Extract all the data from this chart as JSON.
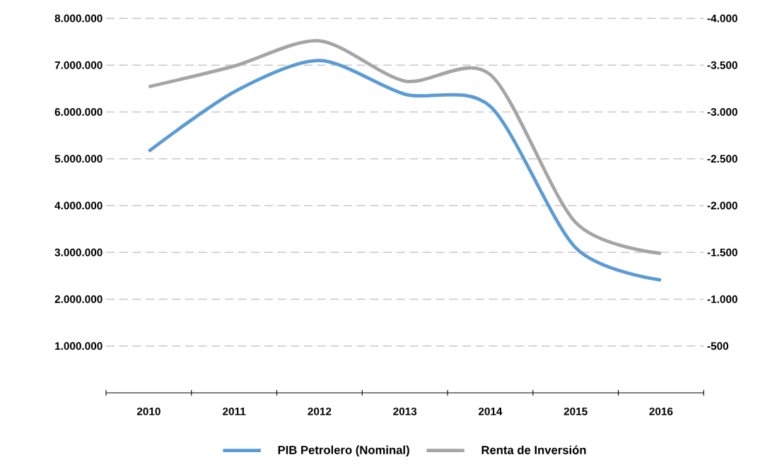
{
  "chart_data": {
    "type": "line",
    "categories": [
      "2010",
      "2011",
      "2012",
      "2013",
      "2014",
      "2015",
      "2016"
    ],
    "series": [
      {
        "name": "PIB Petrolero (Nominal)",
        "color": "#5b9bd5",
        "values": [
          5160000,
          6430000,
          7100000,
          6380000,
          6120000,
          3100000,
          2410000
        ]
      },
      {
        "name": "Renta de Inversión",
        "color": "#a5a5a5",
        "axis": "y2",
        "values": [
          -3270,
          -3490,
          -3760,
          -3330,
          -3400,
          -1820,
          -1490
        ]
      }
    ],
    "ylim": [
      0,
      8000000
    ],
    "yticks": [
      {
        "value": 1000000,
        "label": "1.000.000"
      },
      {
        "value": 2000000,
        "label": "2.000.000"
      },
      {
        "value": 3000000,
        "label": "3.000.000"
      },
      {
        "value": 4000000,
        "label": "4.000.000"
      },
      {
        "value": 5000000,
        "label": "5.000.000"
      },
      {
        "value": 6000000,
        "label": "6.000.000"
      },
      {
        "value": 7000000,
        "label": "7.000.000"
      },
      {
        "value": 8000000,
        "label": "8.000.000"
      }
    ],
    "y2lim": [
      0,
      -4000
    ],
    "y2ticks": [
      -500,
      {
        "value": -1000,
        "label": "-1.000"
      },
      {
        "value": -1500,
        "label": "-1.500"
      },
      {
        "value": -2000,
        "label": "-2.000"
      },
      {
        "value": -2500,
        "label": "-2.500"
      },
      {
        "value": -3000,
        "label": "-3.000"
      },
      {
        "value": -3500,
        "label": "-3.500"
      },
      {
        "value": -4000,
        "label": "-4.000"
      }
    ],
    "grid": "y",
    "legend": "bottom"
  }
}
